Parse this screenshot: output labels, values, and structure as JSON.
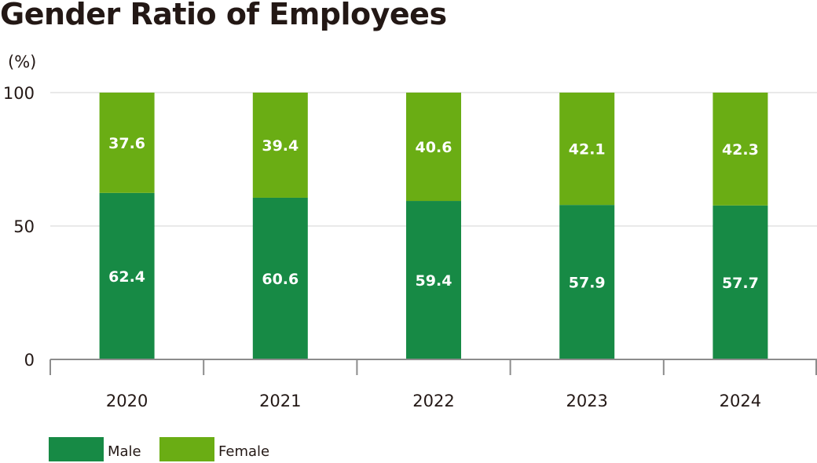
{
  "chart_data": {
    "type": "bar",
    "stacked": true,
    "title": "Gender Ratio of Employees",
    "ylabel": "(%)",
    "xlabel": "",
    "ylim": [
      0,
      100
    ],
    "yticks": [
      "0",
      "50",
      "100"
    ],
    "grid": true,
    "legend_placement": "bottom-left",
    "categories": [
      "2020",
      "2021",
      "2022",
      "2023",
      "2024"
    ],
    "series": [
      {
        "name": "Male",
        "color": "#178a45",
        "values": [
          62.4,
          60.6,
          59.4,
          57.9,
          57.7
        ]
      },
      {
        "name": "Female",
        "color": "#6aad14",
        "values": [
          37.6,
          39.4,
          40.6,
          42.1,
          42.3
        ]
      }
    ]
  }
}
